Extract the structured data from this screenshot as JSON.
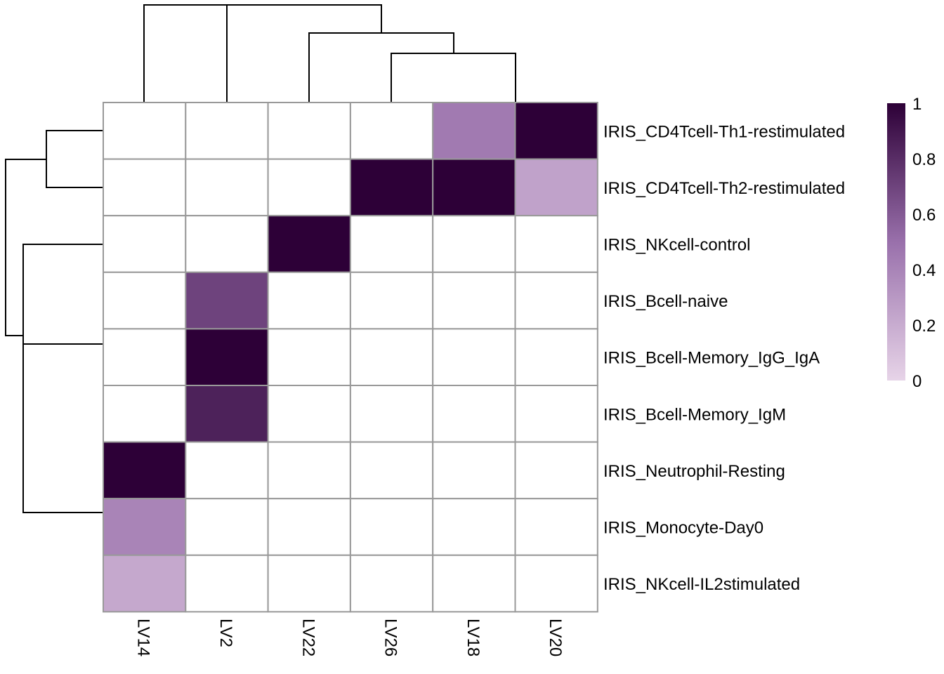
{
  "chart_data": {
    "type": "heatmap",
    "title": "",
    "columns": [
      "LV14",
      "LV2",
      "LV22",
      "LV26",
      "LV18",
      "LV20"
    ],
    "rows": [
      "IRIS_CD4Tcell-Th1-restimulated",
      "IRIS_CD4Tcell-Th2-restimulated",
      "IRIS_NKcell-control",
      "IRIS_Bcell-naive",
      "IRIS_Bcell-Memory_IgG_IgA",
      "IRIS_Bcell-Memory_IgM",
      "IRIS_Neutrophil-Resting",
      "IRIS_Monocyte-Day0",
      "IRIS_NKcell-IL2stimulated"
    ],
    "values": [
      [
        0,
        0,
        0,
        0,
        0.45,
        1.0
      ],
      [
        0,
        0,
        0,
        1.0,
        1.0,
        0.25
      ],
      [
        0,
        0,
        1.0,
        0,
        0,
        0
      ],
      [
        0,
        0.7,
        0,
        0,
        0,
        0
      ],
      [
        0,
        1.0,
        0,
        0,
        0,
        0
      ],
      [
        0,
        0.85,
        0,
        0,
        0,
        0
      ],
      [
        1.0,
        0,
        0,
        0,
        0,
        0
      ],
      [
        0.4,
        0,
        0,
        0,
        0,
        0
      ],
      [
        0.22,
        0,
        0,
        0,
        0,
        0
      ]
    ],
    "value_range": [
      0,
      1
    ],
    "legend": {
      "ticks": [
        "0",
        "0.2",
        "0.4",
        "0.6",
        "0.8",
        "1"
      ],
      "placement": "right"
    },
    "colors": {
      "low": "#e7d4e8",
      "mid": "#9970ab",
      "high": "#2d0037",
      "zero_cell": "#ffffff",
      "grid": "#999999"
    },
    "column_dendrogram": true,
    "row_dendrogram": true
  }
}
